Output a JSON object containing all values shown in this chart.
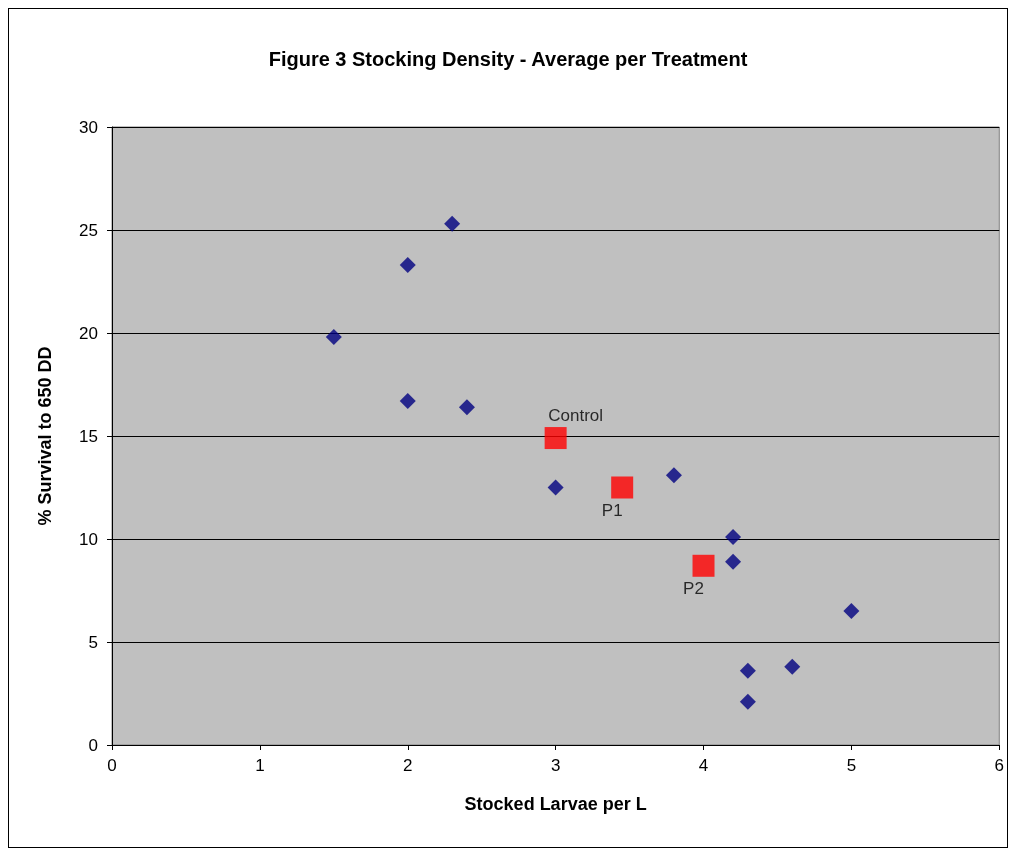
{
  "chart_data": {
    "type": "scatter",
    "title": "Figure 3 Stocking Density - Average per Treatment",
    "xlabel": "Stocked Larvae per L",
    "ylabel": "% Survival to 650 DD",
    "xlim": [
      0,
      6
    ],
    "xticks": [
      0,
      1,
      2,
      3,
      4,
      5,
      6
    ],
    "ylim": [
      0,
      30
    ],
    "yticks": [
      0,
      5,
      10,
      15,
      20,
      25,
      30
    ],
    "grid": "y",
    "series": [
      {
        "color": "#000080",
        "marker": "diamond",
        "x": [
          1.5,
          2.0,
          2.3,
          2.0,
          2.4,
          3.0,
          3.8,
          4.2,
          4.2,
          5.0,
          4.3,
          4.6,
          4.3
        ],
        "values": [
          19.8,
          23.3,
          25.3,
          16.7,
          16.4,
          12.5,
          13.1,
          10.1,
          8.9,
          6.5,
          3.6,
          3.8,
          2.1
        ]
      },
      {
        "color": "#ff0000",
        "marker": "square",
        "x": [
          3.0,
          3.45,
          4.0
        ],
        "values": [
          14.9,
          12.5,
          8.7
        ]
      }
    ],
    "annotations": [
      {
        "text": "Control",
        "x": 3.0,
        "y": 14.9
      },
      {
        "text": "P1",
        "x": 3.45,
        "y": 12.5
      },
      {
        "text": "P2",
        "x": 4.0,
        "y": 8.7
      }
    ]
  }
}
